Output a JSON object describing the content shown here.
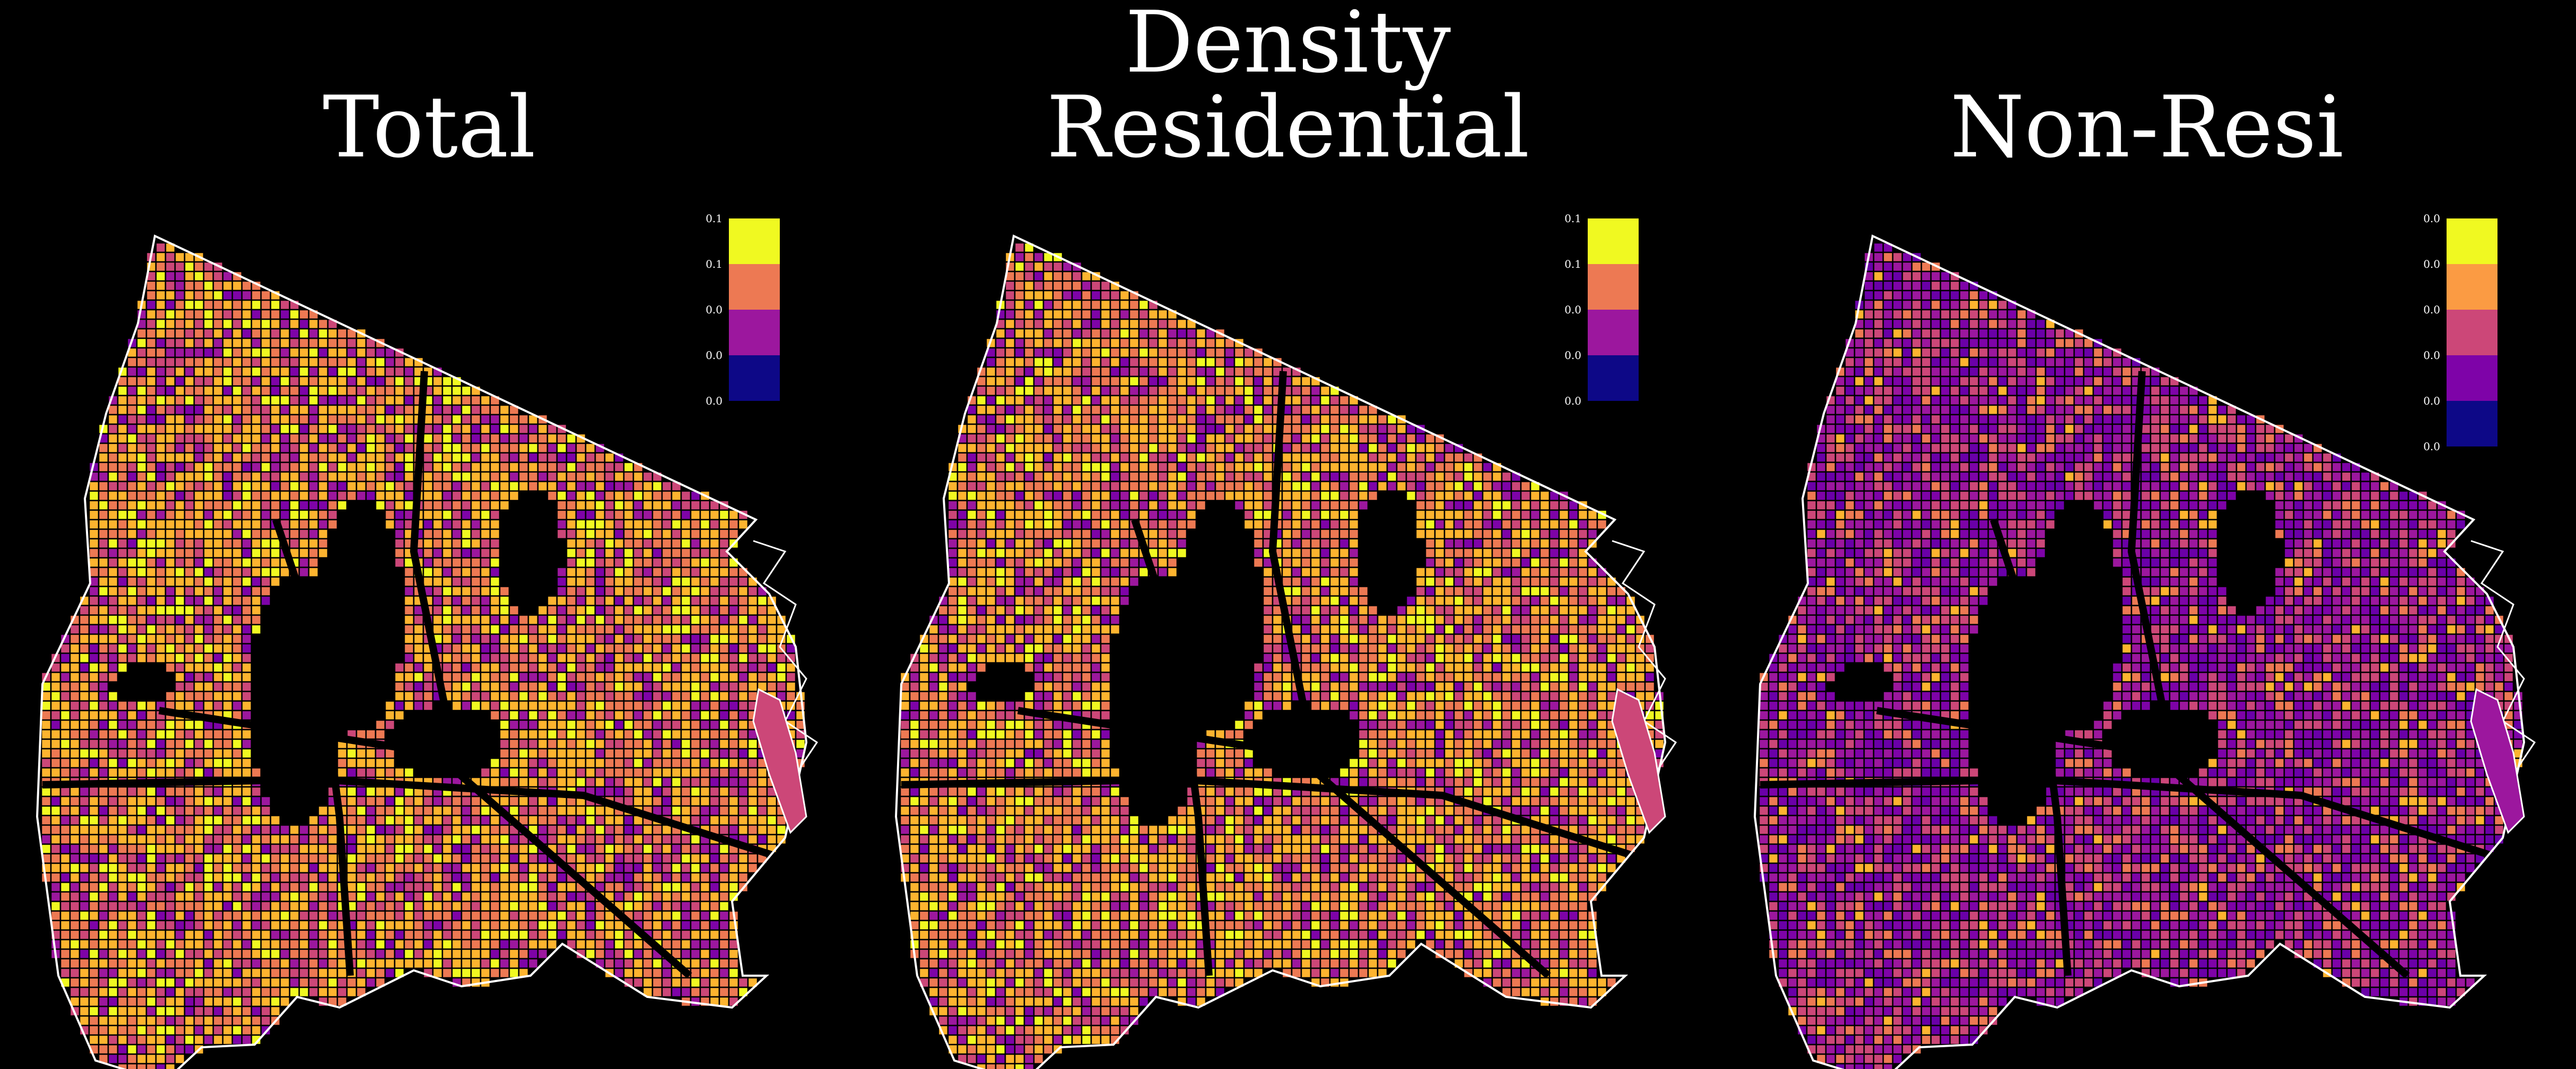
{
  "figure": {
    "suptitle": "Density"
  },
  "panels": [
    {
      "title": "Total",
      "legend": {
        "ticks": [
          "0.1",
          "0.1",
          "0.0",
          "0.0",
          "0.0"
        ],
        "colors": [
          "#f0f921",
          "#ed7953",
          "#9c179e",
          "#0d0887"
        ]
      }
    },
    {
      "title": "Residential",
      "legend": {
        "ticks": [
          "0.1",
          "0.1",
          "0.0",
          "0.0",
          "0.0"
        ],
        "colors": [
          "#f0f921",
          "#ed7953",
          "#9c179e",
          "#0d0887"
        ]
      }
    },
    {
      "title": "Non-Resi",
      "legend": {
        "ticks": [
          "0.0",
          "0.0",
          "0.0",
          "0.0",
          "0.0",
          "0.0"
        ],
        "colors": [
          "#f0f921",
          "#fb9b43",
          "#cc4778",
          "#7e03a8",
          "#0d0887"
        ]
      }
    }
  ],
  "map_style": {
    "background": "#000000",
    "outline": "#ffffff",
    "block_edge": "#000000",
    "colormap": "plasma"
  }
}
